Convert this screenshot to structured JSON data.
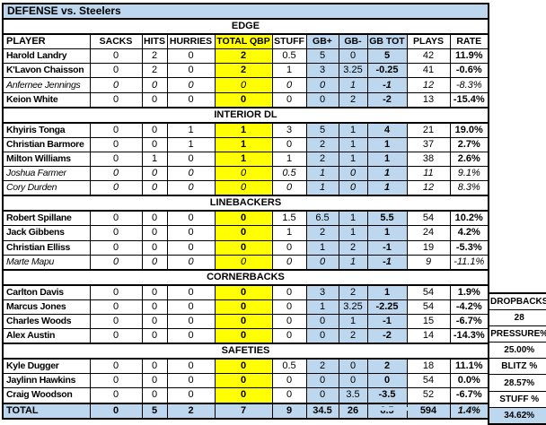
{
  "title": "DEFENSE vs. Steelers",
  "columns": [
    "PLAYER",
    "SACKS",
    "HITS",
    "HURRIES",
    "TOTAL QBP",
    "STUFF",
    "GB+",
    "GB-",
    "GB TOT",
    "PLAYS",
    "RATE"
  ],
  "sections": [
    {
      "name": "EDGE",
      "players": [
        {
          "name": "Harold Landry",
          "italic": false,
          "sacks": "0",
          "hits": "2",
          "hurries": "0",
          "qbp": "2",
          "stuff": "0.5",
          "gbp": "5",
          "gbm": "0",
          "gbtot": "5",
          "plays": "42",
          "rate": "11.9%"
        },
        {
          "name": "K'Lavon Chaisson",
          "italic": false,
          "sacks": "0",
          "hits": "2",
          "hurries": "0",
          "qbp": "2",
          "stuff": "1",
          "gbp": "3",
          "gbm": "3.25",
          "gbtot": "-0.25",
          "plays": "41",
          "rate": "-0.6%"
        },
        {
          "name": "Anfernee Jennings",
          "italic": true,
          "sacks": "0",
          "hits": "0",
          "hurries": "0",
          "qbp": "0",
          "stuff": "0",
          "gbp": "0",
          "gbm": "1",
          "gbtot": "-1",
          "plays": "12",
          "rate": "-8.3%"
        },
        {
          "name": "Keion White",
          "italic": false,
          "sacks": "0",
          "hits": "0",
          "hurries": "0",
          "qbp": "0",
          "stuff": "0",
          "gbp": "0",
          "gbm": "2",
          "gbtot": "-2",
          "plays": "13",
          "rate": "-15.4%"
        }
      ]
    },
    {
      "name": "INTERIOR DL",
      "players": [
        {
          "name": "Khyiris Tonga",
          "italic": false,
          "sacks": "0",
          "hits": "0",
          "hurries": "1",
          "qbp": "1",
          "stuff": "3",
          "gbp": "5",
          "gbm": "1",
          "gbtot": "4",
          "plays": "21",
          "rate": "19.0%"
        },
        {
          "name": "Christian Barmore",
          "italic": false,
          "sacks": "0",
          "hits": "0",
          "hurries": "1",
          "qbp": "1",
          "stuff": "0",
          "gbp": "2",
          "gbm": "1",
          "gbtot": "1",
          "plays": "37",
          "rate": "2.7%"
        },
        {
          "name": "Milton Williams",
          "italic": false,
          "sacks": "0",
          "hits": "1",
          "hurries": "0",
          "qbp": "1",
          "stuff": "1",
          "gbp": "2",
          "gbm": "1",
          "gbtot": "1",
          "plays": "38",
          "rate": "2.6%"
        },
        {
          "name": "Joshua Farmer",
          "italic": true,
          "sacks": "0",
          "hits": "0",
          "hurries": "0",
          "qbp": "0",
          "stuff": "0.5",
          "gbp": "1",
          "gbm": "0",
          "gbtot": "1",
          "plays": "11",
          "rate": "9.1%"
        },
        {
          "name": "Cory Durden",
          "italic": true,
          "sacks": "0",
          "hits": "0",
          "hurries": "0",
          "qbp": "0",
          "stuff": "0",
          "gbp": "1",
          "gbm": "0",
          "gbtot": "1",
          "plays": "12",
          "rate": "8.3%"
        }
      ]
    },
    {
      "name": "LINEBACKERS",
      "players": [
        {
          "name": "Robert Spillane",
          "italic": false,
          "sacks": "0",
          "hits": "0",
          "hurries": "0",
          "qbp": "0",
          "stuff": "1.5",
          "gbp": "6.5",
          "gbm": "1",
          "gbtot": "5.5",
          "plays": "54",
          "rate": "10.2%"
        },
        {
          "name": "Jack Gibbens",
          "italic": false,
          "sacks": "0",
          "hits": "0",
          "hurries": "0",
          "qbp": "0",
          "stuff": "1",
          "gbp": "2",
          "gbm": "1",
          "gbtot": "1",
          "plays": "24",
          "rate": "4.2%"
        },
        {
          "name": "Christian Elliss",
          "italic": false,
          "sacks": "0",
          "hits": "0",
          "hurries": "0",
          "qbp": "0",
          "stuff": "0",
          "gbp": "1",
          "gbm": "2",
          "gbtot": "-1",
          "plays": "19",
          "rate": "-5.3%"
        },
        {
          "name": "Marte Mapu",
          "italic": true,
          "sacks": "0",
          "hits": "0",
          "hurries": "0",
          "qbp": "0",
          "stuff": "0",
          "gbp": "0",
          "gbm": "1",
          "gbtot": "-1",
          "plays": "9",
          "rate": "-11.1%"
        }
      ]
    },
    {
      "name": "CORNERBACKS",
      "players": [
        {
          "name": "Carlton Davis",
          "italic": false,
          "sacks": "0",
          "hits": "0",
          "hurries": "0",
          "qbp": "0",
          "stuff": "0",
          "gbp": "3",
          "gbm": "2",
          "gbtot": "1",
          "plays": "54",
          "rate": "1.9%"
        },
        {
          "name": "Marcus Jones",
          "italic": false,
          "sacks": "0",
          "hits": "0",
          "hurries": "0",
          "qbp": "0",
          "stuff": "0",
          "gbp": "1",
          "gbm": "3.25",
          "gbtot": "-2.25",
          "plays": "54",
          "rate": "-4.2%"
        },
        {
          "name": "Charles Woods",
          "italic": false,
          "sacks": "0",
          "hits": "0",
          "hurries": "0",
          "qbp": "0",
          "stuff": "0",
          "gbp": "0",
          "gbm": "1",
          "gbtot": "-1",
          "plays": "15",
          "rate": "-6.7%"
        },
        {
          "name": "Alex Austin",
          "italic": false,
          "sacks": "0",
          "hits": "0",
          "hurries": "0",
          "qbp": "0",
          "stuff": "0",
          "gbp": "0",
          "gbm": "2",
          "gbtot": "-2",
          "plays": "14",
          "rate": "-14.3%"
        }
      ]
    },
    {
      "name": "SAFETIES",
      "players": [
        {
          "name": "Kyle Dugger",
          "italic": false,
          "sacks": "0",
          "hits": "0",
          "hurries": "0",
          "qbp": "0",
          "stuff": "0.5",
          "gbp": "2",
          "gbm": "0",
          "gbtot": "2",
          "plays": "18",
          "rate": "11.1%"
        },
        {
          "name": "Jaylinn Hawkins",
          "italic": false,
          "sacks": "0",
          "hits": "0",
          "hurries": "0",
          "qbp": "0",
          "stuff": "0",
          "gbp": "0",
          "gbm": "0",
          "gbtot": "0",
          "plays": "54",
          "rate": "0.0%"
        },
        {
          "name": "Craig Woodson",
          "italic": false,
          "sacks": "0",
          "hits": "0",
          "hurries": "0",
          "qbp": "0",
          "stuff": "0",
          "gbp": "0",
          "gbm": "3.5",
          "gbtot": "-3.5",
          "plays": "52",
          "rate": "-6.7%"
        }
      ]
    }
  ],
  "total": {
    "label": "TOTAL",
    "sacks": "0",
    "hits": "5",
    "hurries": "2",
    "qbp": "7",
    "stuff": "9",
    "gbp": "34.5",
    "gbm": "26",
    "gbtot": "8.5",
    "plays": "594",
    "rate": "1.4%"
  },
  "side_panel": {
    "rows": [
      "DROPBACKS",
      "28",
      "PRESSURE%",
      "25.00%",
      "BLITZ %",
      "28.57%",
      "STUFF %",
      "34.62%"
    ]
  },
  "colors": {
    "accent_blue": "#BDD7EE",
    "highlight_yellow": "#FFFF00",
    "border": "#000000"
  }
}
